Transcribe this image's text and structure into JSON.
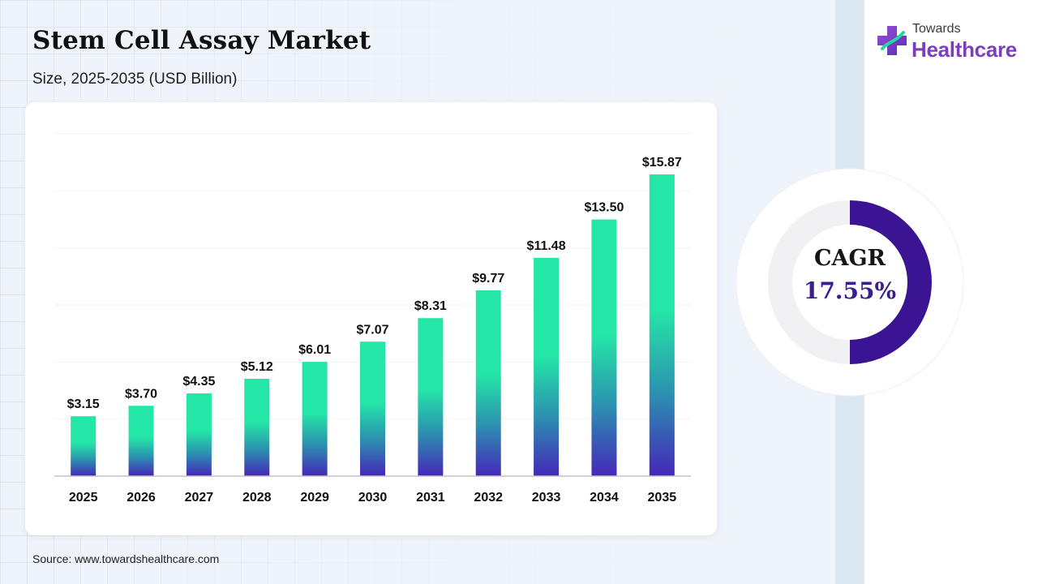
{
  "header": {
    "title": "Stem Cell Assay Market",
    "subtitle": "Size, 2025-2035 (USD Billion)"
  },
  "logo": {
    "line1": "Towards",
    "line2": "Healthcare",
    "brand_color": "#7b3fbe"
  },
  "cagr": {
    "label": "CAGR",
    "value": "17.55%",
    "fraction": 0.5,
    "ring_color": "#3b1493",
    "track_color": "#f1f1f3"
  },
  "source": "Source: www.towardshealthcare.com",
  "colors": {
    "bar_top": "#24e6a6",
    "bar_mid": "#2b93b0",
    "bar_bottom": "#4527b8"
  },
  "chart_data": {
    "type": "bar",
    "categories": [
      "2025",
      "2026",
      "2027",
      "2028",
      "2029",
      "2030",
      "2031",
      "2032",
      "2033",
      "2034",
      "2035"
    ],
    "values": [
      3.15,
      3.7,
      4.35,
      5.12,
      6.01,
      7.07,
      8.31,
      9.77,
      11.48,
      13.5,
      15.87
    ],
    "data_labels": [
      "$3.15",
      "$3.70",
      "$4.35",
      "$5.12",
      "$6.01",
      "$7.07",
      "$8.31",
      "$9.77",
      "$11.48",
      "$13.50",
      "$15.87"
    ],
    "title": "Stem Cell Assay Market",
    "subtitle": "Size, 2025-2035 (USD Billion)",
    "xlabel": "",
    "ylabel": "",
    "ylim": [
      0,
      18
    ],
    "grid": true,
    "legend": "none"
  }
}
